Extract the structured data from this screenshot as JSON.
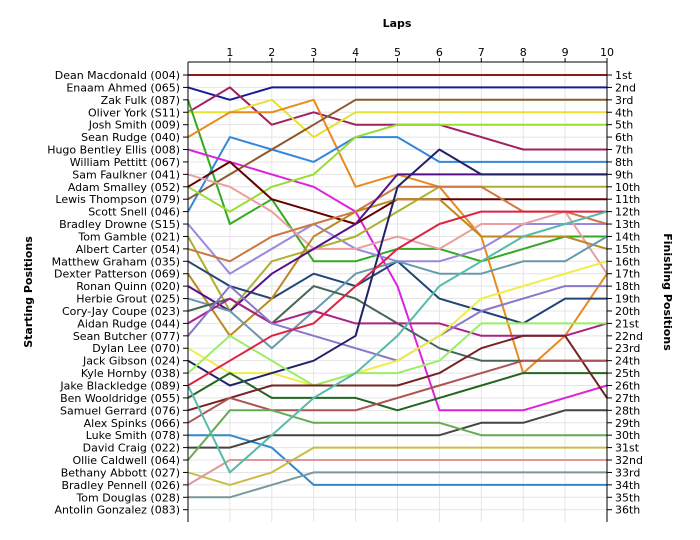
{
  "chart_data": {
    "type": "line",
    "title": "Laps",
    "ylabel_left": "Starting Positions",
    "ylabel_right": "Finishing Positions",
    "x_ticks": [
      1,
      2,
      3,
      4,
      5,
      6,
      7,
      8,
      9,
      10
    ],
    "xlim": [
      0,
      10
    ],
    "ylim": [
      1,
      36
    ],
    "y_inverted": true,
    "grid": true,
    "starting_labels": [
      "Dean Macdonald (004)",
      "Enaam Ahmed (065)",
      "Zak Fulk (087)",
      "Oliver York (S11)",
      "Josh Smith (009)",
      "Sean Rudge (040)",
      "Hugo Bentley Ellis (008)",
      "William Pettitt (067)",
      "Sam Faulkner (041)",
      "Adam Smalley (052)",
      "Lewis Thompson (079)",
      "Scott Snell (046)",
      "Bradley Drowne (S15)",
      "Tom Gamble (021)",
      "Albert Carter (054)",
      "Matthew Graham (035)",
      "Dexter Patterson (069)",
      "Ronan Quinn (020)",
      "Herbie Grout (025)",
      "Cory-Jay Coupe (023)",
      "Aidan Rudge (044)",
      "Sean Butcher (077)",
      "Dylan Lee (070)",
      "Jack Gibson (024)",
      "Kyle Hornby (038)",
      "Jake Blackledge (089)",
      "Ben Wooldridge (055)",
      "Samuel Gerrard (076)",
      "Alex Spinks (066)",
      "Luke Smith (078)",
      "David Craig (022)",
      "Ollie Caldwell (064)",
      "Bethany Abbott (027)",
      "Bradley Pennell (026)",
      "Tom Douglas (028)",
      "Antolin Gonzalez (083)"
    ],
    "finishing_labels": [
      "1st",
      "2nd",
      "3rd",
      "4th",
      "5th",
      "6th",
      "7th",
      "8th",
      "9th",
      "10th",
      "11th",
      "12th",
      "13th",
      "14th",
      "15th",
      "16th",
      "17th",
      "18th",
      "19th",
      "20th",
      "21st",
      "22nd",
      "23rd",
      "24th",
      "25th",
      "26th",
      "27th",
      "28th",
      "29th",
      "30th",
      "31st",
      "32nd",
      "33rd",
      "34th",
      "35th",
      "36th"
    ],
    "series": [
      {
        "color": "#8b1a1a",
        "values": [
          1,
          1,
          1,
          1,
          1,
          1,
          1,
          1,
          1,
          1,
          1
        ]
      },
      {
        "color": "#1a1a99",
        "values": [
          2,
          3,
          2,
          2,
          2,
          2,
          2,
          2,
          2,
          2,
          2
        ]
      },
      {
        "color": "#a02060",
        "values": [
          4,
          2,
          5,
          4,
          5,
          5,
          5,
          6,
          7,
          7,
          7
        ]
      },
      {
        "color": "#e8e030",
        "values": [
          4,
          4,
          3,
          6,
          4,
          4,
          4,
          4,
          4,
          4,
          4
        ]
      },
      {
        "color": "#33aa22",
        "values": [
          3,
          13,
          11,
          16,
          16,
          15,
          15,
          16,
          15,
          14,
          14
        ]
      },
      {
        "color": "#e88a20",
        "values": [
          6,
          4,
          4,
          3,
          10,
          9,
          10,
          14,
          25,
          22,
          17
        ]
      },
      {
        "color": "#3388dd",
        "values": [
          12,
          6,
          7,
          8,
          6,
          6,
          8,
          8,
          8,
          8,
          8
        ]
      },
      {
        "color": "#dd22dd",
        "values": [
          7,
          8,
          9,
          10,
          12,
          18,
          28,
          28,
          28,
          27,
          26
        ]
      },
      {
        "color": "#8b5a2b",
        "values": [
          11,
          9,
          7,
          5,
          3,
          3,
          3,
          3,
          3,
          3,
          3
        ]
      },
      {
        "color": "#99dd33",
        "values": [
          10,
          12,
          10,
          9,
          6,
          5,
          5,
          5,
          5,
          5,
          5
        ]
      },
      {
        "color": "#660000",
        "values": [
          10,
          8,
          11,
          12,
          13,
          11,
          11,
          11,
          11,
          11,
          11
        ]
      },
      {
        "color": "#9988dd",
        "values": [
          13,
          17,
          15,
          13,
          15,
          16,
          16,
          15,
          13,
          13,
          13
        ]
      },
      {
        "color": "#b0b030",
        "values": [
          14,
          20,
          16,
          15,
          14,
          12,
          10,
          10,
          10,
          10,
          10
        ]
      },
      {
        "color": "#e8a0a0",
        "values": [
          9,
          10,
          12,
          15,
          15,
          14,
          15,
          13,
          13,
          12,
          17
        ]
      },
      {
        "color": "#cc7744",
        "values": [
          15,
          16,
          14,
          13,
          12,
          10,
          10,
          10,
          12,
          12,
          13
        ]
      },
      {
        "color": "#224477",
        "values": [
          16,
          18,
          19,
          17,
          18,
          16,
          19,
          20,
          21,
          19,
          19
        ]
      },
      {
        "color": "#bb8822",
        "values": [
          17,
          22,
          19,
          14,
          12,
          11,
          11,
          14,
          14,
          14,
          15
        ]
      },
      {
        "color": "#551188",
        "values": [
          18,
          20,
          17,
          15,
          13,
          9,
          9,
          9,
          9,
          9,
          9
        ]
      },
      {
        "color": "#6699aa",
        "values": [
          19,
          20,
          23,
          20,
          17,
          16,
          17,
          17,
          16,
          16,
          14
        ]
      },
      {
        "color": "#446655",
        "values": [
          20,
          19,
          21,
          18,
          19,
          21,
          23,
          24,
          24,
          24,
          24
        ]
      },
      {
        "color": "#aa2288",
        "values": [
          21,
          19,
          21,
          20,
          21,
          21,
          21,
          22,
          22,
          22,
          21
        ]
      },
      {
        "color": "#8877cc",
        "values": [
          22,
          18,
          21,
          22,
          23,
          24,
          22,
          20,
          19,
          18,
          18
        ]
      },
      {
        "color": "#eeee44",
        "values": [
          23,
          25,
          25,
          26,
          25,
          24,
          22,
          19,
          18,
          17,
          16
        ]
      },
      {
        "color": "#22226a",
        "values": [
          24,
          26,
          25,
          24,
          22,
          10,
          7,
          9,
          9,
          9,
          9
        ]
      },
      {
        "color": "#99ee66",
        "values": [
          25,
          22,
          24,
          26,
          25,
          25,
          24,
          21,
          21,
          21,
          21
        ]
      },
      {
        "color": "#dd2244",
        "values": [
          26,
          24,
          22,
          21,
          18,
          15,
          13,
          12,
          12,
          12,
          12
        ]
      },
      {
        "color": "#226622",
        "values": [
          27,
          25,
          27,
          27,
          27,
          28,
          27,
          26,
          25,
          25,
          25
        ]
      },
      {
        "color": "#772222",
        "values": [
          28,
          27,
          26,
          26,
          26,
          26,
          25,
          23,
          22,
          22,
          27
        ]
      },
      {
        "color": "#aa5555",
        "values": [
          29,
          27,
          28,
          28,
          28,
          27,
          26,
          25,
          24,
          24,
          24
        ]
      },
      {
        "color": "#3388cc",
        "values": [
          30,
          30,
          31,
          34,
          34,
          34,
          34,
          34,
          34,
          34,
          34
        ]
      },
      {
        "color": "#444444",
        "values": [
          31,
          31,
          30,
          30,
          30,
          30,
          30,
          29,
          29,
          28,
          28
        ]
      },
      {
        "color": "#66aa55",
        "values": [
          32,
          28,
          28,
          29,
          29,
          29,
          29,
          30,
          30,
          30,
          30
        ]
      },
      {
        "color": "#ccbb44",
        "values": [
          33,
          34,
          33,
          31,
          31,
          31,
          31,
          31,
          31,
          31,
          31
        ]
      },
      {
        "color": "#dd9999",
        "values": [
          34,
          32,
          32,
          32,
          32,
          32,
          32,
          32,
          32,
          32,
          32
        ]
      },
      {
        "color": "#779999",
        "values": [
          35,
          35,
          34,
          33,
          33,
          33,
          33,
          33,
          33,
          33,
          33
        ]
      },
      {
        "color": "#55bbaa",
        "values": [
          26,
          33,
          30,
          27,
          25,
          22,
          18,
          16,
          14,
          13,
          12
        ]
      }
    ]
  }
}
